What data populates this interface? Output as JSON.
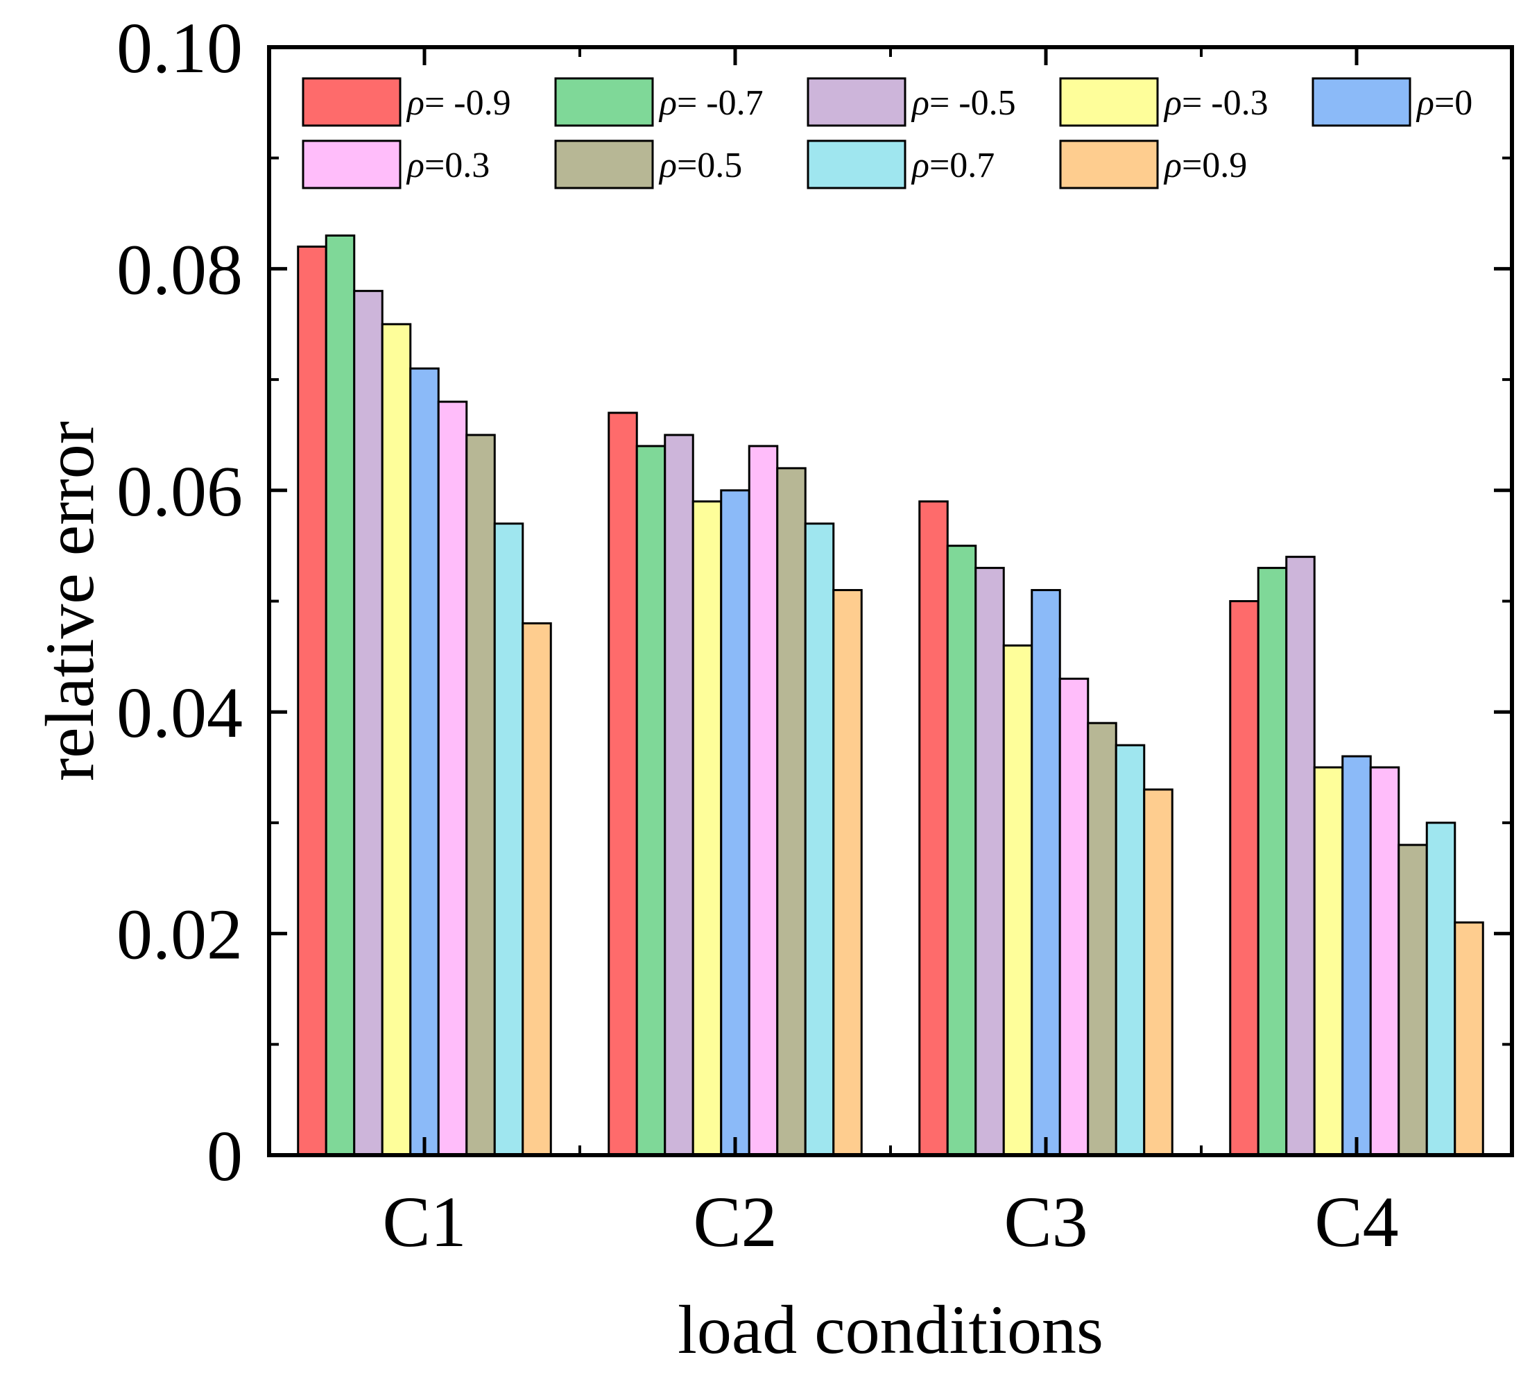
{
  "chart_data": {
    "type": "bar",
    "xlabel": "load conditions",
    "ylabel": "relative error",
    "ylim": [
      0,
      0.1
    ],
    "yticks": [
      "0",
      "0.02",
      "0.04",
      "0.06",
      "0.08",
      "0.10"
    ],
    "yticks_values": [
      0,
      0.02,
      0.04,
      0.06,
      0.08,
      0.1
    ],
    "categories": [
      "C1",
      "C2",
      "C3",
      "C4"
    ],
    "legend_placement": "top",
    "legend_symbol": "ρ",
    "series": [
      {
        "name": "= -0.9",
        "color": "#fe6b6b",
        "values": [
          0.082,
          0.067,
          0.059,
          0.05
        ]
      },
      {
        "name": "= -0.7",
        "color": "#7fd898",
        "values": [
          0.083,
          0.064,
          0.055,
          0.053
        ]
      },
      {
        "name": "= -0.5",
        "color": "#cdb5da",
        "values": [
          0.078,
          0.065,
          0.053,
          0.054
        ]
      },
      {
        "name": "= -0.3",
        "color": "#fefe9a",
        "values": [
          0.075,
          0.059,
          0.046,
          0.035
        ]
      },
      {
        "name": "=0",
        "color": "#8bbaf8",
        "values": [
          0.071,
          0.06,
          0.051,
          0.036
        ]
      },
      {
        "name": "=0.3",
        "color": "#ffbdfa",
        "values": [
          0.068,
          0.064,
          0.043,
          0.035
        ]
      },
      {
        "name": "=0.5",
        "color": "#b7b795",
        "values": [
          0.065,
          0.062,
          0.039,
          0.028
        ]
      },
      {
        "name": "=0.7",
        "color": "#9fe6ef",
        "values": [
          0.057,
          0.057,
          0.037,
          0.03
        ]
      },
      {
        "name": "=0.9",
        "color": "#fecd8f",
        "values": [
          0.048,
          0.051,
          0.033,
          0.021
        ]
      }
    ]
  }
}
